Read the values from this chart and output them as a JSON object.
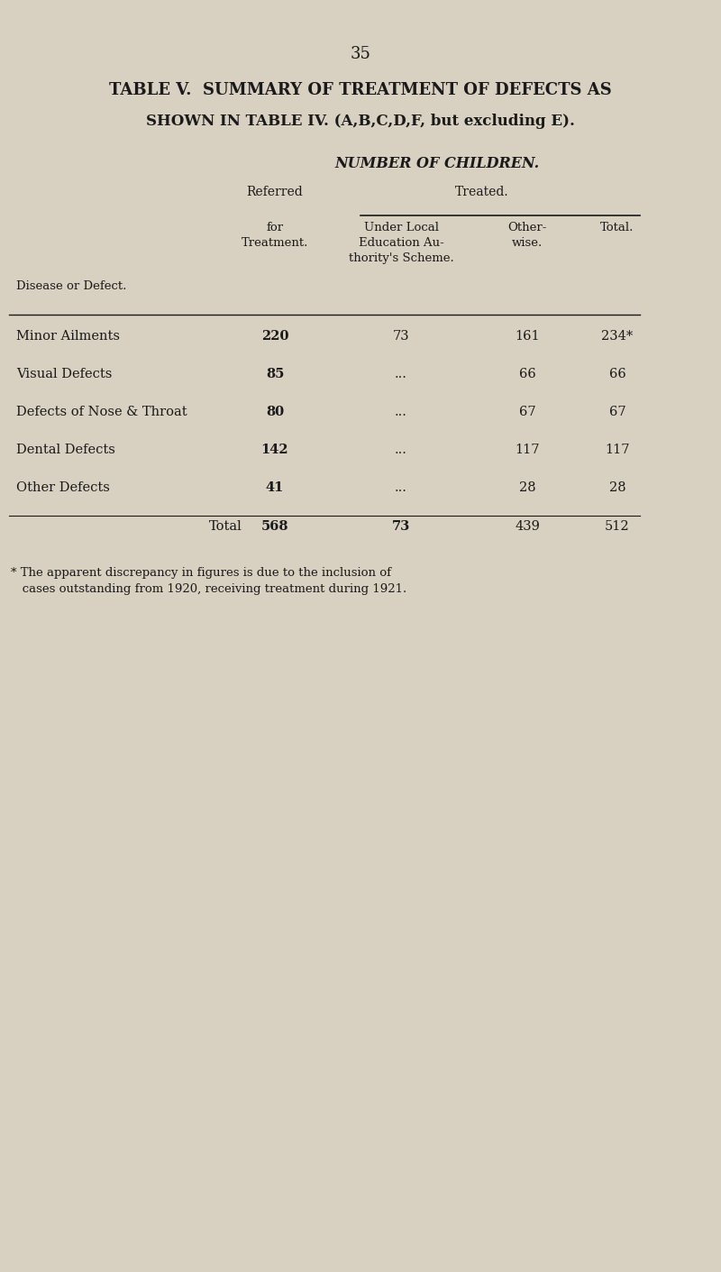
{
  "page_number": "35",
  "title_line1": "TABLE V.  SUMMARY OF TREATMENT OF DEFECTS AS",
  "title_line2": "SHOWN IN TABLE IV. (A,B,C,D,F, but excluding E).",
  "section_header": "NUMBER OF CHILDREN.",
  "col_header_referred": "Referred",
  "col_header_for_treatment": "for\nTreatment.",
  "col_header_treated": "Treated.",
  "col_header_under_local": "Under Local\nEducation Au-\nthority's Scheme.",
  "col_header_otherwise": "Other-\nwise.",
  "col_header_total": "Total.",
  "col_header_disease": "Disease or Defect.",
  "rows": [
    {
      "disease": "Minor Ailments",
      "referred": "220",
      "under_local": "73",
      "otherwise": "161",
      "total": "234*"
    },
    {
      "disease": "Visual Defects",
      "referred": "85",
      "under_local": "...",
      "otherwise": "66",
      "total": "66"
    },
    {
      "disease": "Defects of Nose & Throat",
      "referred": "80",
      "under_local": "...",
      "otherwise": "67",
      "total": "67"
    },
    {
      "disease": "Dental Defects",
      "referred": "142",
      "under_local": "...",
      "otherwise": "117",
      "total": "117"
    },
    {
      "disease": "Other Defects",
      "referred": "41",
      "under_local": "...",
      "otherwise": "28",
      "total": "28"
    }
  ],
  "total_row": {
    "label": "Total",
    "referred": "568",
    "under_local": "73",
    "otherwise": "439",
    "total": "512"
  },
  "footnote": "* The apparent discrepancy in figures is due to the inclusion of\n   cases outstanding from 1920, receiving treatment during 1921.",
  "bg_color": "#d8d0c0",
  "text_color": "#1a1a1a"
}
